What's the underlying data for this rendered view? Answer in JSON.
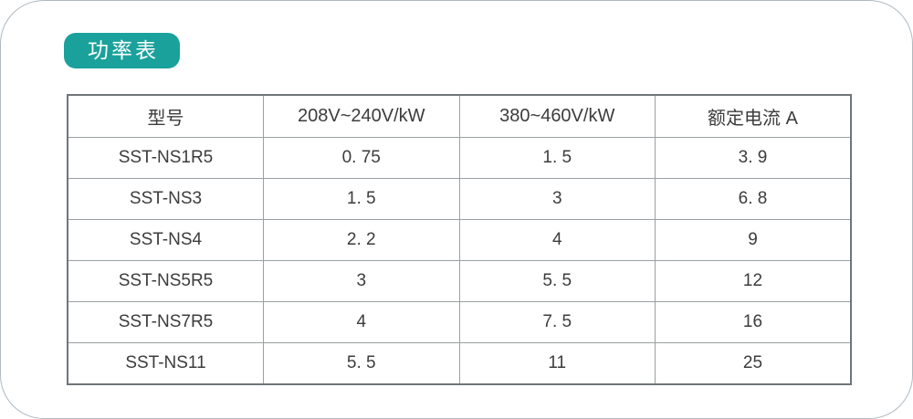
{
  "colors": {
    "accent": "#1aa19c",
    "frame": "#aeb9c0",
    "grid_inner": "#9aa0a4",
    "grid_outer": "#6f7478",
    "text": "#3c3c3c",
    "badge_text": "#ffffff"
  },
  "badge": {
    "label": "功率表"
  },
  "table": {
    "columns": [
      "型号",
      "208V~240V/kW",
      "380~460V/kW",
      "额定电流 A"
    ],
    "rows": [
      [
        "SST-NS1R5",
        "0. 75",
        "1. 5",
        "3. 9"
      ],
      [
        "SST-NS3",
        "1. 5",
        "3",
        "6. 8"
      ],
      [
        "SST-NS4",
        "2. 2",
        "4",
        "9"
      ],
      [
        "SST-NS5R5",
        "3",
        "5. 5",
        "12"
      ],
      [
        "SST-NS7R5",
        "4",
        "7. 5",
        "16"
      ],
      [
        "SST-NS11",
        "5. 5",
        "11",
        "25"
      ]
    ]
  }
}
